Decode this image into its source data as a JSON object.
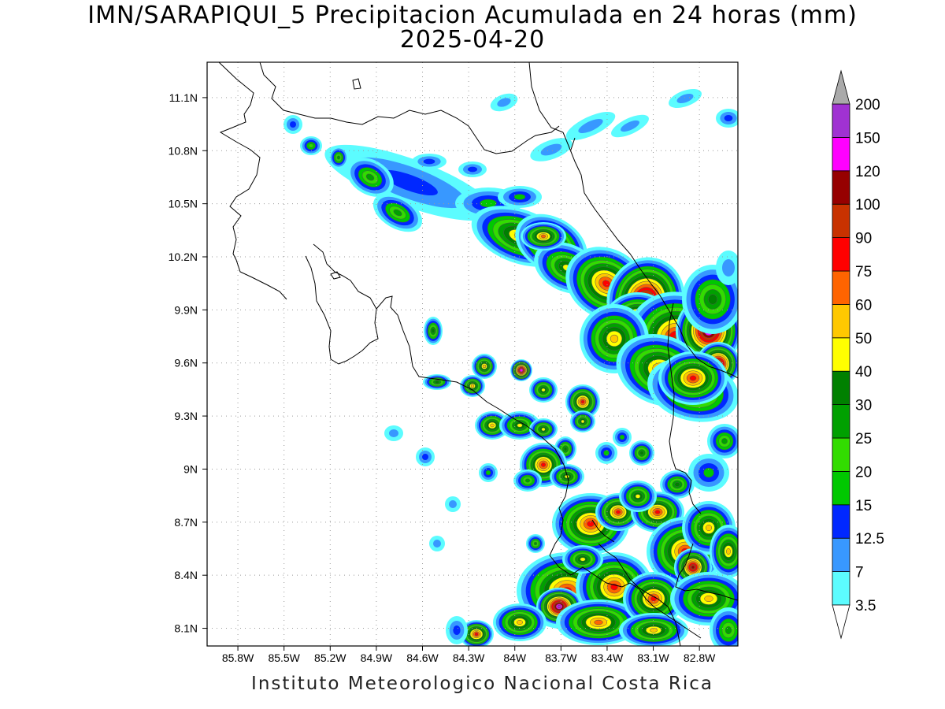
{
  "title": "IMN/SARAPIQUI_5 Precipitacion Acumulada en 24 horas (mm)",
  "date": "2025-04-20",
  "credit": "Instituto Meteorologico Nacional Costa Rica",
  "lat_ticks": [
    "11.1N",
    "10.8N",
    "10.5N",
    "10.2N",
    "9.9N",
    "9.6N",
    "9.3N",
    "9N",
    "8.7N",
    "8.4N",
    "8.1N"
  ],
  "lon_ticks": [
    "85.8W",
    "85.5W",
    "85.2W",
    "84.9W",
    "84.6W",
    "84.3W",
    "84W",
    "83.7W",
    "83.4W",
    "83.1W",
    "82.8W"
  ],
  "extent": {
    "lon_min": -86.0,
    "lon_max": -82.55,
    "lat_min": 8.0,
    "lat_max": 11.3
  },
  "colorbar": {
    "levels": [
      "3.5",
      "7",
      "12.5",
      "15",
      "20",
      "25",
      "30",
      "40",
      "50",
      "60",
      "75",
      "90",
      "100",
      "120",
      "150",
      "200"
    ],
    "colors": [
      "#5cfcff",
      "#3898ff",
      "#0028ff",
      "#00c800",
      "#32dc00",
      "#00a000",
      "#008000",
      "#ffff00",
      "#ffc800",
      "#ff6400",
      "#ff0000",
      "#c83200",
      "#960000",
      "#ff00ff",
      "#a032d2",
      "#f5f5f5"
    ],
    "over_color": "#aaaaaa",
    "under_color": "#ffffff"
  },
  "chart_data": {
    "type": "heatmap",
    "title": "IMN/SARAPIQUI_5 Precipitacion Acumulada en 24 horas (mm)",
    "subtitle": "2025-04-20",
    "xlim": [
      -86.0,
      -82.55
    ],
    "ylim": [
      8.0,
      11.3
    ],
    "x_ticks": [
      "85.8W",
      "85.5W",
      "85.2W",
      "84.9W",
      "84.6W",
      "84.3W",
      "84W",
      "83.7W",
      "83.4W",
      "83.1W",
      "82.8W"
    ],
    "y_ticks": [
      "11.1N",
      "10.8N",
      "10.5N",
      "10.2N",
      "9.9N",
      "9.6N",
      "9.3N",
      "9N",
      "8.7N",
      "8.4N",
      "8.1N"
    ],
    "colorbar_levels": [
      3.5,
      7,
      12.5,
      15,
      20,
      25,
      30,
      40,
      50,
      60,
      75,
      90,
      100,
      120,
      150,
      200
    ],
    "grid": true
  }
}
